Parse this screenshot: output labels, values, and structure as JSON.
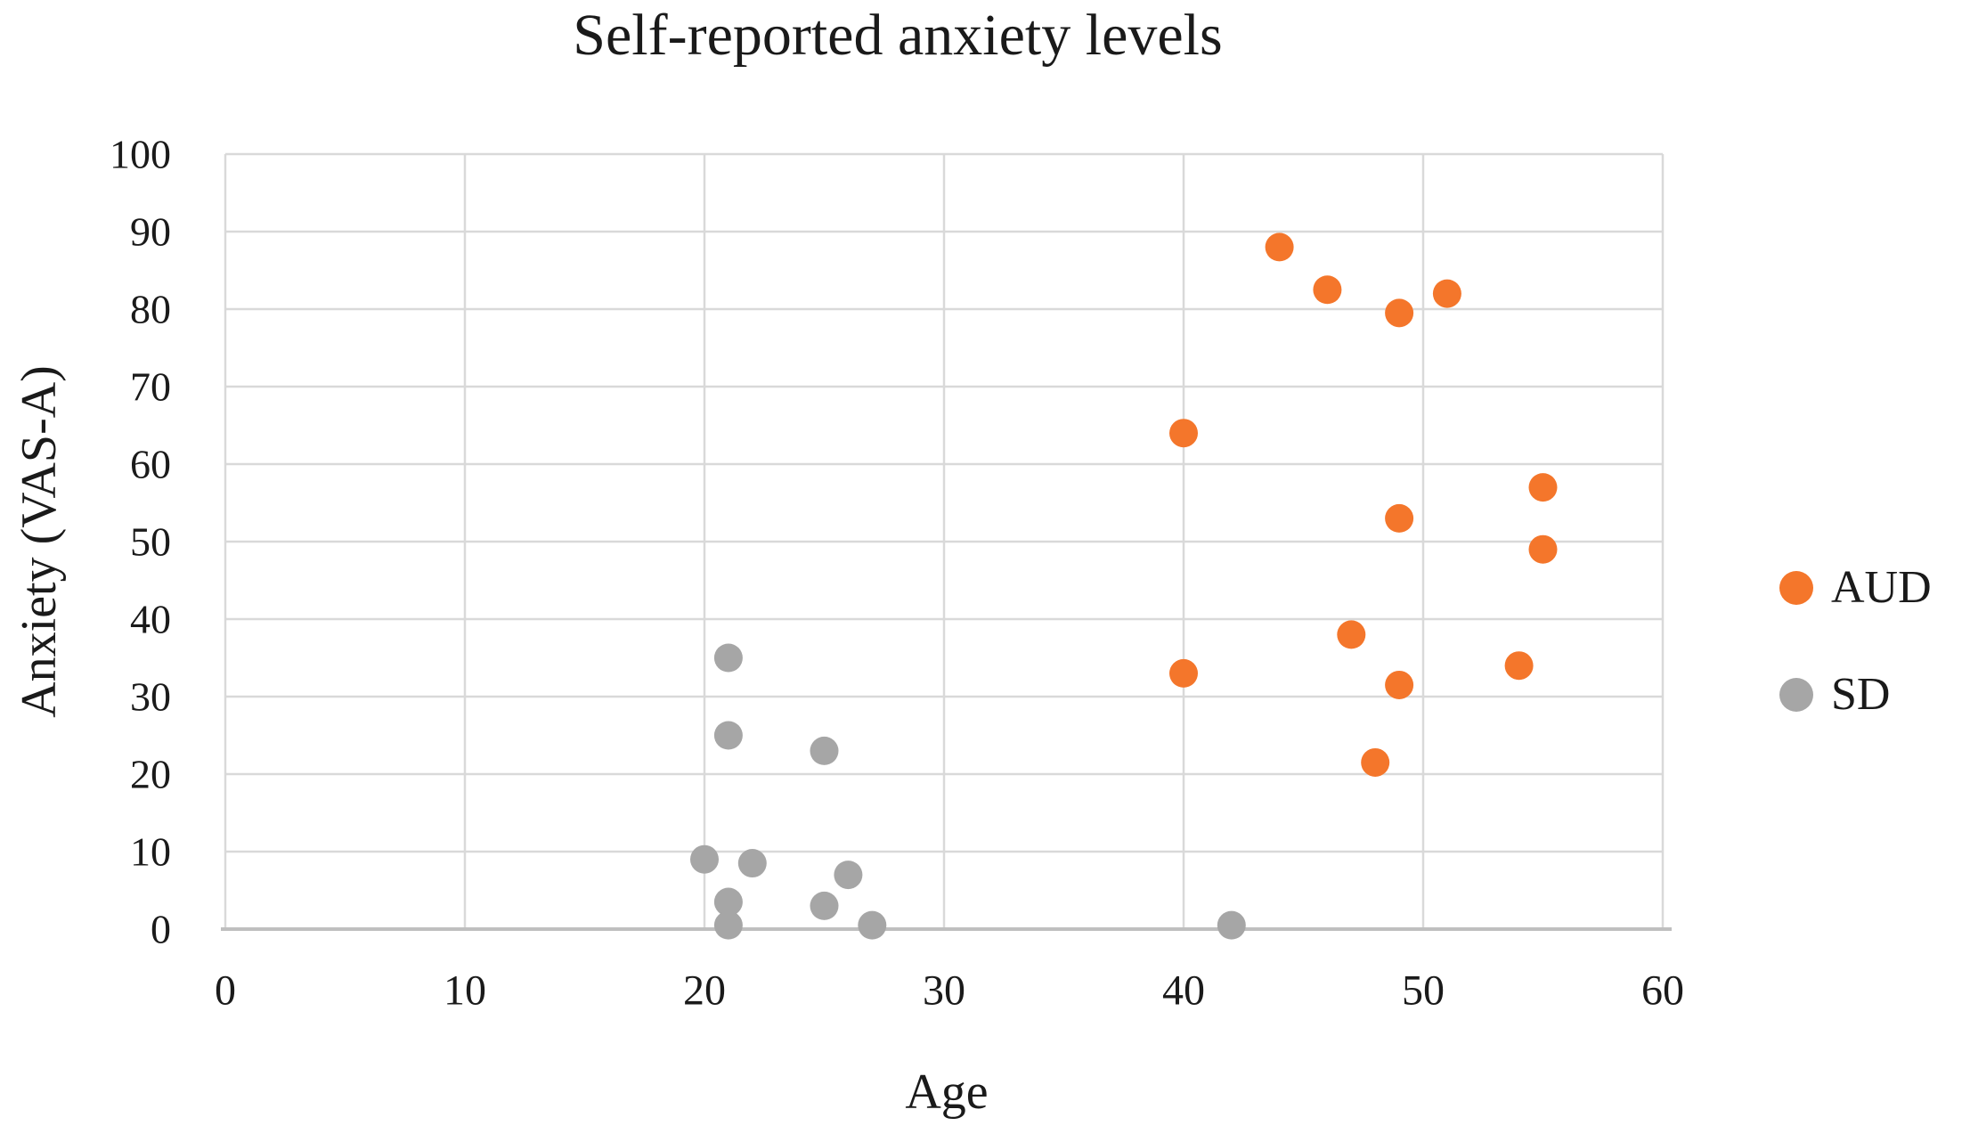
{
  "colors": {
    "grid": "#d9d9d9",
    "axis_line": "#bfbfbf",
    "text": "#1a1a1a",
    "aud": "#f4762b",
    "sd": "#a6a6a6"
  },
  "chart_data": {
    "type": "scatter",
    "title": "Self-reported anxiety levels",
    "xlabel": "Age",
    "ylabel": "Anxiety (VAS-A)",
    "xlim": [
      0,
      60
    ],
    "ylim": [
      0,
      100
    ],
    "xticks": [
      0,
      10,
      20,
      30,
      40,
      50,
      60
    ],
    "yticks": [
      0,
      10,
      20,
      30,
      40,
      50,
      60,
      70,
      80,
      90,
      100
    ],
    "grid": true,
    "legend_position": "right",
    "marker_radius": 16,
    "series": [
      {
        "name": "AUD",
        "color": "#f4762b",
        "points": [
          [
            44,
            88
          ],
          [
            46,
            82.5
          ],
          [
            49,
            79.5
          ],
          [
            51,
            82
          ],
          [
            40,
            64
          ],
          [
            55,
            57
          ],
          [
            49,
            53
          ],
          [
            55,
            49
          ],
          [
            47,
            38
          ],
          [
            54,
            34
          ],
          [
            40,
            33
          ],
          [
            49,
            31.5
          ],
          [
            48,
            21.5
          ]
        ]
      },
      {
        "name": "SD",
        "color": "#a6a6a6",
        "points": [
          [
            21,
            35
          ],
          [
            21,
            25
          ],
          [
            25,
            23
          ],
          [
            20,
            9
          ],
          [
            22,
            8.5
          ],
          [
            26,
            7
          ],
          [
            21,
            3.5
          ],
          [
            25,
            3
          ],
          [
            27,
            0.5
          ],
          [
            21,
            0.5
          ],
          [
            42,
            0.5
          ]
        ]
      }
    ]
  }
}
